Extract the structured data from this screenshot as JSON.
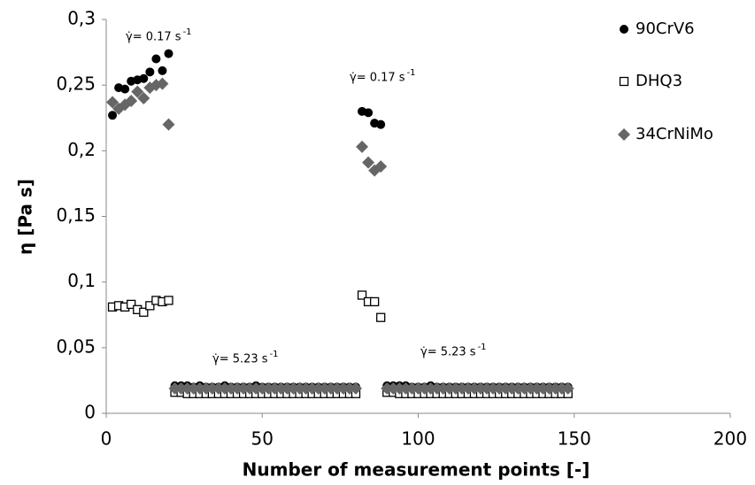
{
  "chart_data": {
    "type": "scatter",
    "xlabel": "Number of measurement points [-]",
    "ylabel": "η [Pa s]",
    "xlim": [
      0,
      200
    ],
    "xticks": [
      0,
      50,
      100,
      150,
      200
    ],
    "ylim": [
      0,
      0.3
    ],
    "yticks": [
      0,
      {
        "value": 0.05,
        "label": "0,05"
      },
      {
        "value": 0.1,
        "label": "0,1"
      },
      {
        "value": 0.15,
        "label": "0,15"
      },
      {
        "value": 0.2,
        "label": "0,2"
      },
      {
        "value": 0.25,
        "label": "0,25"
      },
      {
        "value": 0.3,
        "label": "0,3"
      }
    ],
    "legend": "right",
    "annotations": [
      {
        "text": "γ̇= 0.17 s",
        "sup": "-1"
      },
      {
        "text": "γ̇= 0.17 s",
        "sup": "-1"
      },
      {
        "text": "γ̇= 5.23 s",
        "sup": "-1"
      },
      {
        "text": "γ̇= 5.23 s",
        "sup": "-1"
      }
    ],
    "x": [
      2,
      4,
      6,
      8,
      10,
      12,
      14,
      16,
      18,
      20,
      22,
      24,
      26,
      28,
      30,
      32,
      34,
      36,
      38,
      40,
      42,
      44,
      46,
      48,
      50,
      52,
      54,
      56,
      58,
      60,
      62,
      64,
      66,
      68,
      70,
      72,
      74,
      76,
      78,
      80,
      82,
      84,
      86,
      88,
      90,
      92,
      94,
      96,
      98,
      100,
      102,
      104,
      106,
      108,
      110,
      112,
      114,
      116,
      118,
      120,
      122,
      124,
      126,
      128,
      130,
      132,
      134,
      136,
      138,
      140,
      142,
      144,
      146,
      148
    ],
    "series": [
      {
        "name": "90CrV6",
        "color": "#000000",
        "marker": "circle",
        "values": [
          0.227,
          0.248,
          0.247,
          0.253,
          0.254,
          0.255,
          0.26,
          0.27,
          0.261,
          0.274,
          0.021,
          0.021,
          0.021,
          0.02,
          0.021,
          0.02,
          0.02,
          0.02,
          0.021,
          0.02,
          0.02,
          0.02,
          0.02,
          0.021,
          0.02,
          0.02,
          0.02,
          0.02,
          0.02,
          0.02,
          0.02,
          0.02,
          0.02,
          0.02,
          0.02,
          0.02,
          0.02,
          0.02,
          0.02,
          0.02,
          0.23,
          0.229,
          0.221,
          0.22,
          0.021,
          0.021,
          0.021,
          0.021,
          0.02,
          0.02,
          0.02,
          0.021,
          0.02,
          0.02,
          0.02,
          0.02,
          0.02,
          0.02,
          0.02,
          0.02,
          0.02,
          0.02,
          0.02,
          0.02,
          0.02,
          0.02,
          0.02,
          0.02,
          0.02,
          0.02,
          0.02,
          0.02,
          0.02,
          0.02
        ]
      },
      {
        "name": "DHQ3",
        "color": "#000000",
        "marker": "square",
        "values": [
          0.081,
          0.082,
          0.081,
          0.083,
          0.079,
          0.077,
          0.082,
          0.086,
          0.085,
          0.086,
          0.016,
          0.016,
          0.015,
          0.015,
          0.015,
          0.015,
          0.015,
          0.015,
          0.015,
          0.015,
          0.015,
          0.015,
          0.015,
          0.015,
          0.015,
          0.015,
          0.015,
          0.015,
          0.015,
          0.015,
          0.015,
          0.015,
          0.015,
          0.015,
          0.015,
          0.015,
          0.015,
          0.015,
          0.015,
          0.015,
          0.09,
          0.085,
          0.085,
          0.073,
          0.016,
          0.016,
          0.015,
          0.015,
          0.015,
          0.015,
          0.015,
          0.015,
          0.015,
          0.015,
          0.015,
          0.015,
          0.015,
          0.015,
          0.015,
          0.015,
          0.015,
          0.015,
          0.015,
          0.015,
          0.015,
          0.015,
          0.015,
          0.015,
          0.015,
          0.015,
          0.015,
          0.015,
          0.015,
          0.015
        ]
      },
      {
        "name": "34CrNiMo",
        "color": "#666666",
        "marker": "diamond",
        "values": [
          0.237,
          0.232,
          0.235,
          0.238,
          0.245,
          0.24,
          0.248,
          0.25,
          0.251,
          0.22,
          0.019,
          0.019,
          0.019,
          0.019,
          0.019,
          0.019,
          0.019,
          0.019,
          0.019,
          0.019,
          0.019,
          0.019,
          0.019,
          0.019,
          0.019,
          0.019,
          0.019,
          0.019,
          0.019,
          0.019,
          0.019,
          0.019,
          0.019,
          0.019,
          0.019,
          0.019,
          0.019,
          0.019,
          0.019,
          0.019,
          0.203,
          0.191,
          0.185,
          0.188,
          0.019,
          0.019,
          0.019,
          0.019,
          0.019,
          0.019,
          0.019,
          0.019,
          0.019,
          0.019,
          0.019,
          0.019,
          0.019,
          0.019,
          0.019,
          0.019,
          0.019,
          0.019,
          0.019,
          0.019,
          0.019,
          0.019,
          0.019,
          0.019,
          0.019,
          0.019,
          0.019,
          0.019,
          0.019,
          0.019
        ]
      }
    ]
  }
}
